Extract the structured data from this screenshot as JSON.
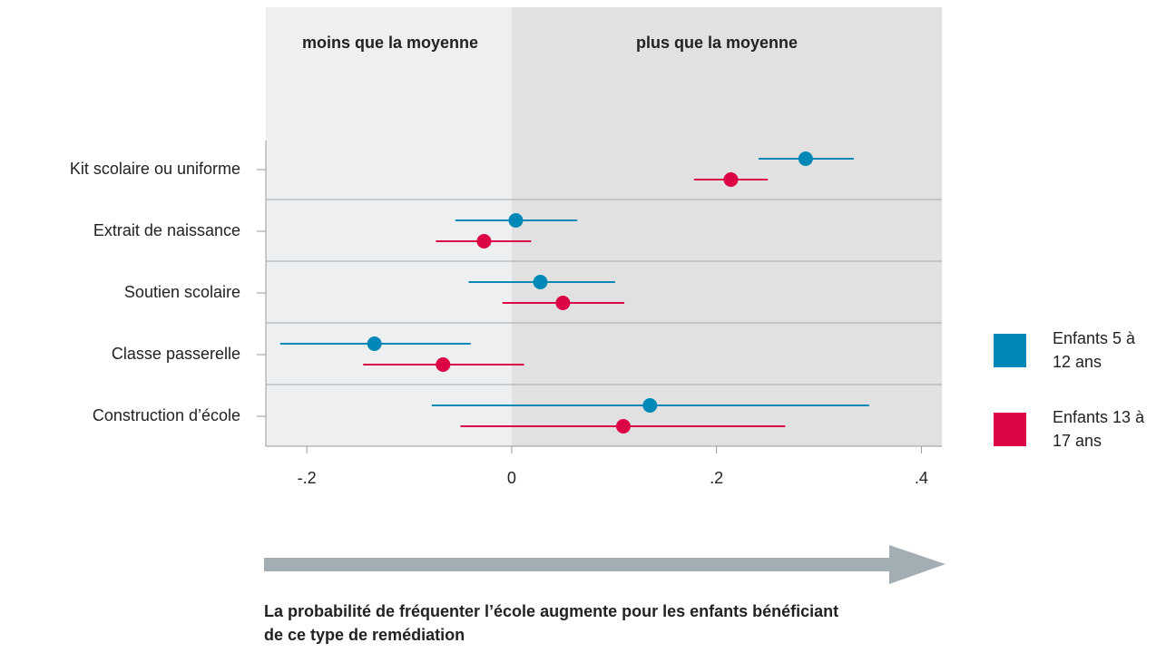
{
  "chart_data": {
    "type": "coefplot",
    "categories": [
      "Kit scolaire ou uniforme",
      "Extrait de naissance",
      "Soutien scolaire",
      "Classe passerelle",
      "Construction d’école"
    ],
    "series": [
      {
        "name": "Enfants 5 à 12 ans",
        "color": "#0089b6",
        "values": [
          0.287,
          0.004,
          0.028,
          -0.134,
          0.135
        ],
        "lower": [
          0.241,
          -0.055,
          -0.042,
          -0.226,
          -0.078
        ],
        "upper": [
          0.334,
          0.064,
          0.101,
          -0.04,
          0.349
        ]
      },
      {
        "name": "Enfants 13 à 17 ans",
        "color": "#dc0545",
        "values": [
          0.214,
          -0.027,
          0.05,
          -0.067,
          0.109
        ],
        "lower": [
          0.178,
          -0.074,
          -0.009,
          -0.145,
          -0.05
        ],
        "upper": [
          0.25,
          0.019,
          0.11,
          0.012,
          0.267
        ]
      }
    ],
    "xlim": [
      -0.24,
      0.42
    ],
    "xticks": [
      {
        "value": -0.2,
        "label": "-.2"
      },
      0,
      {
        "value": 0.2,
        "label": ".2"
      },
      {
        "value": 0.4,
        "label": ".4"
      }
    ],
    "annotations": [
      "moins que la moyenne",
      "plus que la moyenne"
    ],
    "caption": "La probabilité de fréquenter l’école augmente pour les enfants bénéficiant de ce type de remédiation"
  }
}
